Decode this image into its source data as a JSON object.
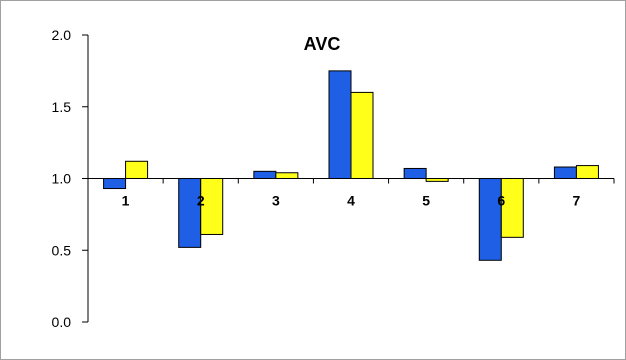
{
  "chart_data": {
    "type": "bar",
    "title": "AVC",
    "xlabel": "",
    "ylabel": "",
    "baseline": 1.0,
    "ylim": [
      0,
      2
    ],
    "yticks": [
      0.0,
      0.5,
      1.0,
      1.5,
      2.0
    ],
    "ytick_labels": [
      "0.0",
      "0.5",
      "1.0",
      "1.5",
      "2.0"
    ],
    "categories": [
      "1",
      "2",
      "3",
      "4",
      "5",
      "6",
      "7"
    ],
    "series": [
      {
        "color": "#1F5FE6",
        "values": [
          0.93,
          0.52,
          1.05,
          1.75,
          1.07,
          0.43,
          1.08
        ]
      },
      {
        "color": "#FFFF1A",
        "values": [
          1.12,
          0.61,
          1.04,
          1.6,
          0.98,
          0.59,
          1.09
        ]
      }
    ],
    "grid": false,
    "legend": "none"
  }
}
